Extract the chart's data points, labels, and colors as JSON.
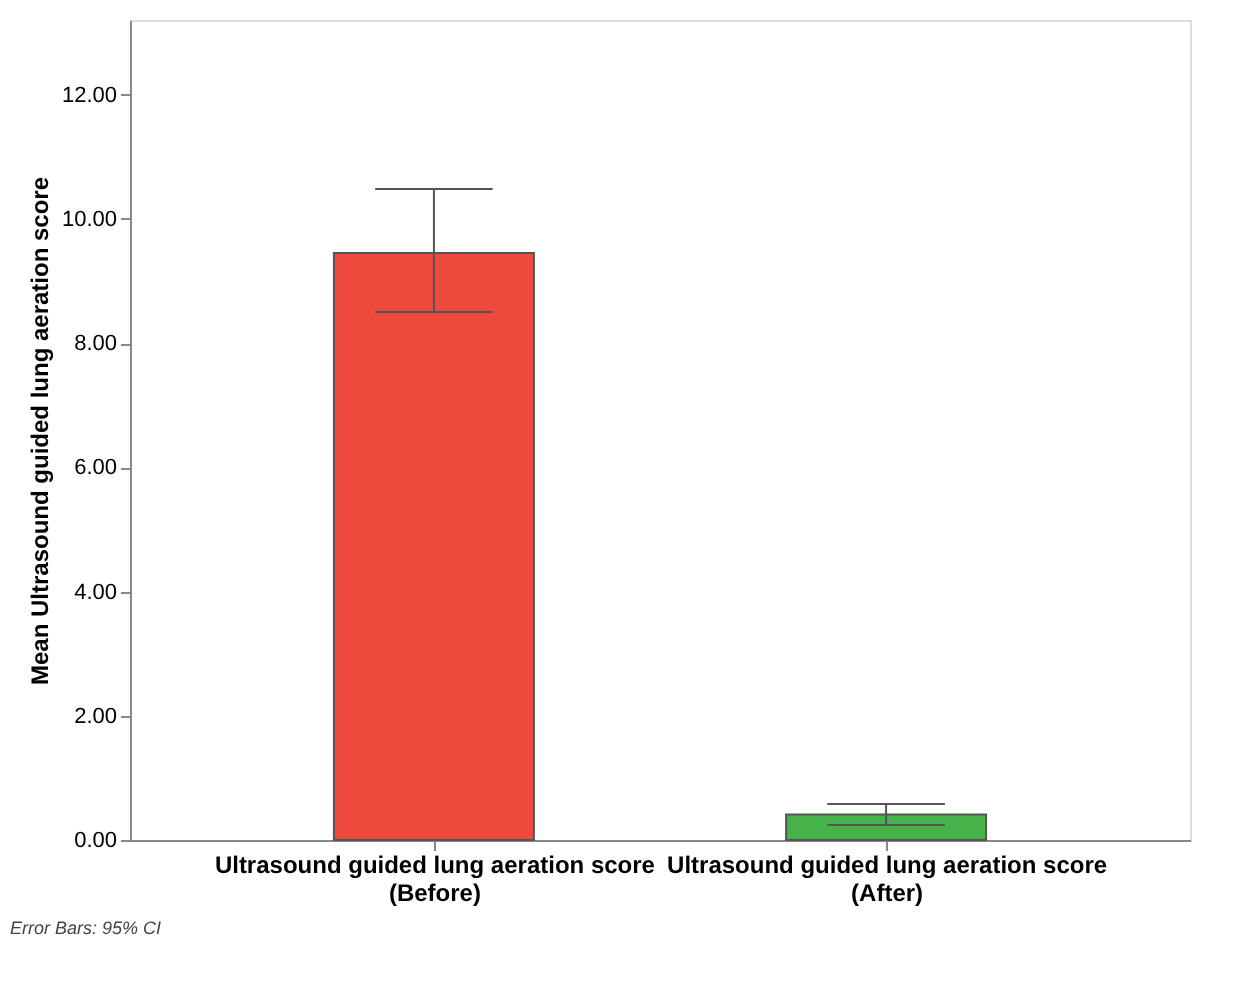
{
  "chart_data": {
    "type": "bar",
    "ylabel": "Mean Ultrasound guided lung aeration score",
    "categories": [
      "Ultrasound guided lung aeration score\n(Before)",
      "Ultrasound guided lung aeration score\n(After)"
    ],
    "values": [
      9.45,
      0.41
    ],
    "colors": [
      "#ee4a3e",
      "#47b14a"
    ],
    "errors": [
      [
        8.5,
        10.48
      ],
      [
        0.24,
        0.58
      ]
    ],
    "ylim": [
      0,
      13.2
    ],
    "yticks": [
      {
        "value": 0,
        "label": "0.00"
      },
      {
        "value": 2,
        "label": "2.00"
      },
      {
        "value": 4,
        "label": "4.00"
      },
      {
        "value": 6,
        "label": "6.00"
      },
      {
        "value": 8,
        "label": "8.00"
      },
      {
        "value": 10,
        "label": "10.00"
      },
      {
        "value": 12,
        "label": "12.00"
      }
    ],
    "grid": false,
    "annotations": [
      "Error Bars: 95% CI"
    ]
  }
}
